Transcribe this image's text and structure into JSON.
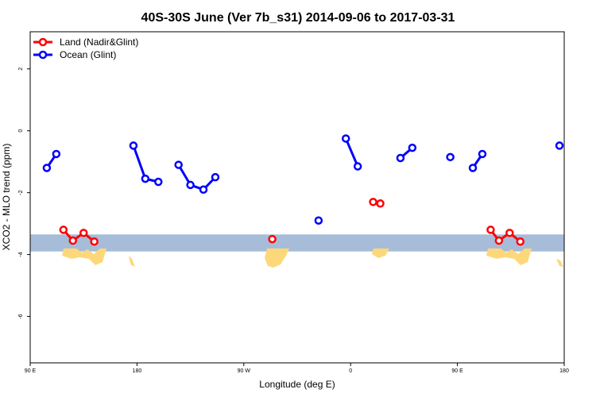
{
  "chart_data": {
    "type": "line",
    "title": "40S-30S June (Ver 7b_s31)   2014-09-06 to 2017-03-31",
    "xlabel": "Longitude (deg E)",
    "ylabel": "XCO2 - MLO trend (ppm)",
    "xlim": [
      90,
      540
    ],
    "ylim": [
      -7.5,
      3.2
    ],
    "x_ticks": [
      {
        "value": 90,
        "label": "90 E"
      },
      {
        "value": 180,
        "label": "180"
      },
      {
        "value": 270,
        "label": "90 W"
      },
      {
        "value": 360,
        "label": "0"
      },
      {
        "value": 450,
        "label": "90 E"
      },
      {
        "value": 540,
        "label": "180"
      }
    ],
    "y_ticks": [
      {
        "value": 2,
        "label": "2"
      },
      {
        "value": 0,
        "label": "0"
      },
      {
        "value": -2,
        "label": "-2"
      },
      {
        "value": -4,
        "label": "-4"
      },
      {
        "value": -6,
        "label": "-6"
      }
    ],
    "latitude_band": {
      "ymin": -3.9,
      "ymax": -3.35,
      "color": "#a7bcd9"
    },
    "land_color": "#fdd87a",
    "legend": {
      "position": "top-left"
    },
    "series": [
      {
        "name": "Land (Nadir&Glint)",
        "color": "#ff0000",
        "segments": [
          [
            [
              118,
              -3.2
            ],
            [
              126,
              -3.55
            ],
            [
              135,
              -3.3
            ],
            [
              144,
              -3.58
            ]
          ],
          [
            [
              294,
              -3.5
            ]
          ],
          [
            [
              379,
              -2.3
            ],
            [
              385,
              -2.35
            ]
          ],
          [
            [
              478,
              -3.2
            ],
            [
              485,
              -3.55
            ],
            [
              494,
              -3.3
            ],
            [
              503,
              -3.58
            ]
          ]
        ]
      },
      {
        "name": "Ocean (Glint)",
        "color": "#0000ff",
        "segments": [
          [
            [
              104,
              -1.2
            ],
            [
              112,
              -0.75
            ]
          ],
          [
            [
              177,
              -0.48
            ],
            [
              187,
              -1.55
            ],
            [
              198,
              -1.65
            ]
          ],
          [
            [
              215,
              -1.1
            ],
            [
              225,
              -1.75
            ],
            [
              236,
              -1.9
            ],
            [
              246,
              -1.5
            ]
          ],
          [
            [
              333,
              -2.9
            ]
          ],
          [
            [
              356,
              -0.25
            ],
            [
              366,
              -1.15
            ]
          ],
          [
            [
              402,
              -0.88
            ],
            [
              412,
              -0.55
            ]
          ],
          [
            [
              444,
              -0.85
            ]
          ],
          [
            [
              463,
              -1.2
            ],
            [
              471,
              -0.75
            ]
          ],
          [
            [
              536,
              -0.48
            ]
          ]
        ]
      }
    ]
  }
}
